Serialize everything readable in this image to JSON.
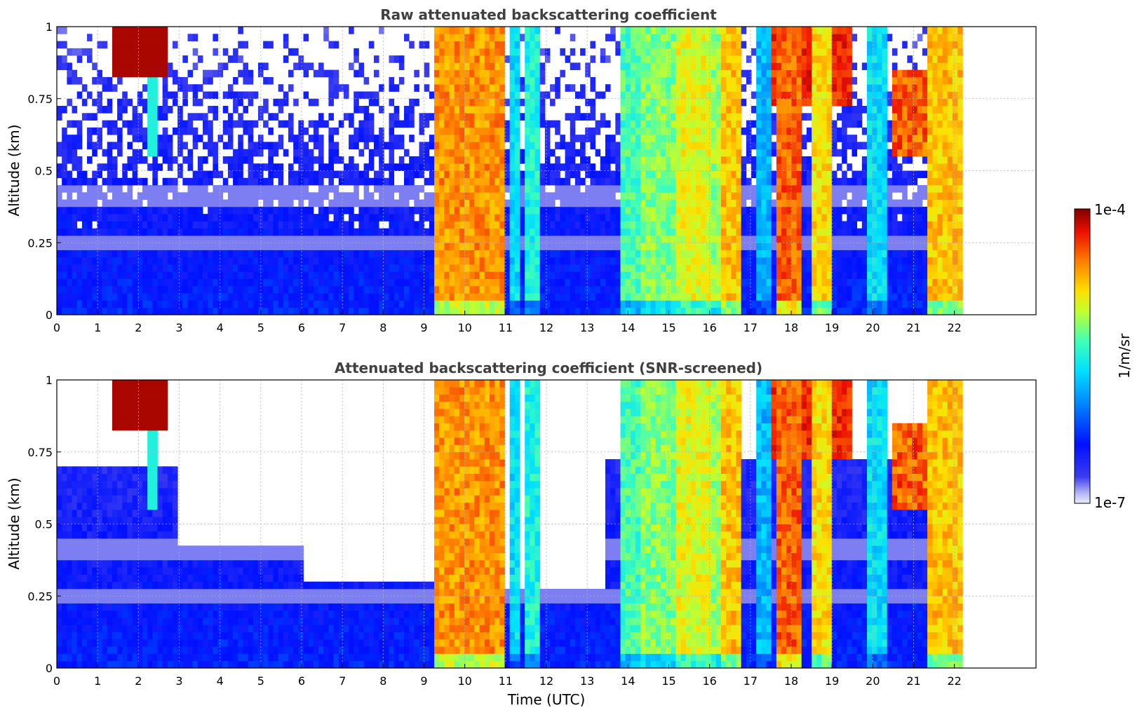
{
  "chart_data": [
    {
      "type": "heatmap",
      "title": "Raw attenuated backscattering coefficient",
      "xlabel": "",
      "ylabel": "Altitude (km)",
      "xlim": [
        0,
        24
      ],
      "ylim": [
        0,
        1
      ],
      "x_ticks": [
        0,
        1,
        2,
        3,
        4,
        5,
        6,
        7,
        8,
        9,
        10,
        11,
        12,
        13,
        14,
        15,
        16,
        17,
        18,
        19,
        20,
        21,
        22
      ],
      "y_ticks": [
        0,
        0.25,
        0.5,
        0.75,
        1
      ],
      "y_tick_labels": [
        "0",
        "0.25",
        "0.5",
        "0.75",
        "1"
      ],
      "grid": true,
      "data_end_time": 22.2,
      "color_scale": "log",
      "color_range": [
        1e-07,
        0.0001
      ]
    },
    {
      "type": "heatmap",
      "title": "Attenuated backscattering coefficient (SNR-screened)",
      "xlabel": "Time (UTC)",
      "ylabel": "Altitude (km)",
      "xlim": [
        0,
        24
      ],
      "ylim": [
        0,
        1
      ],
      "x_ticks": [
        0,
        1,
        2,
        3,
        4,
        5,
        6,
        7,
        8,
        9,
        10,
        11,
        12,
        13,
        14,
        15,
        16,
        17,
        18,
        19,
        20,
        21,
        22
      ],
      "y_ticks": [
        0,
        0.25,
        0.5,
        0.75,
        1
      ],
      "y_tick_labels": [
        "0",
        "0.25",
        "0.5",
        "0.75",
        "1"
      ],
      "grid": true,
      "data_end_time": 22.2,
      "color_scale": "log",
      "color_range": [
        1e-07,
        0.0001
      ]
    }
  ],
  "colorbar": {
    "label": "1/m/sr",
    "max_label": "1e-4",
    "min_label": "1e-7",
    "colormap": "jet"
  }
}
